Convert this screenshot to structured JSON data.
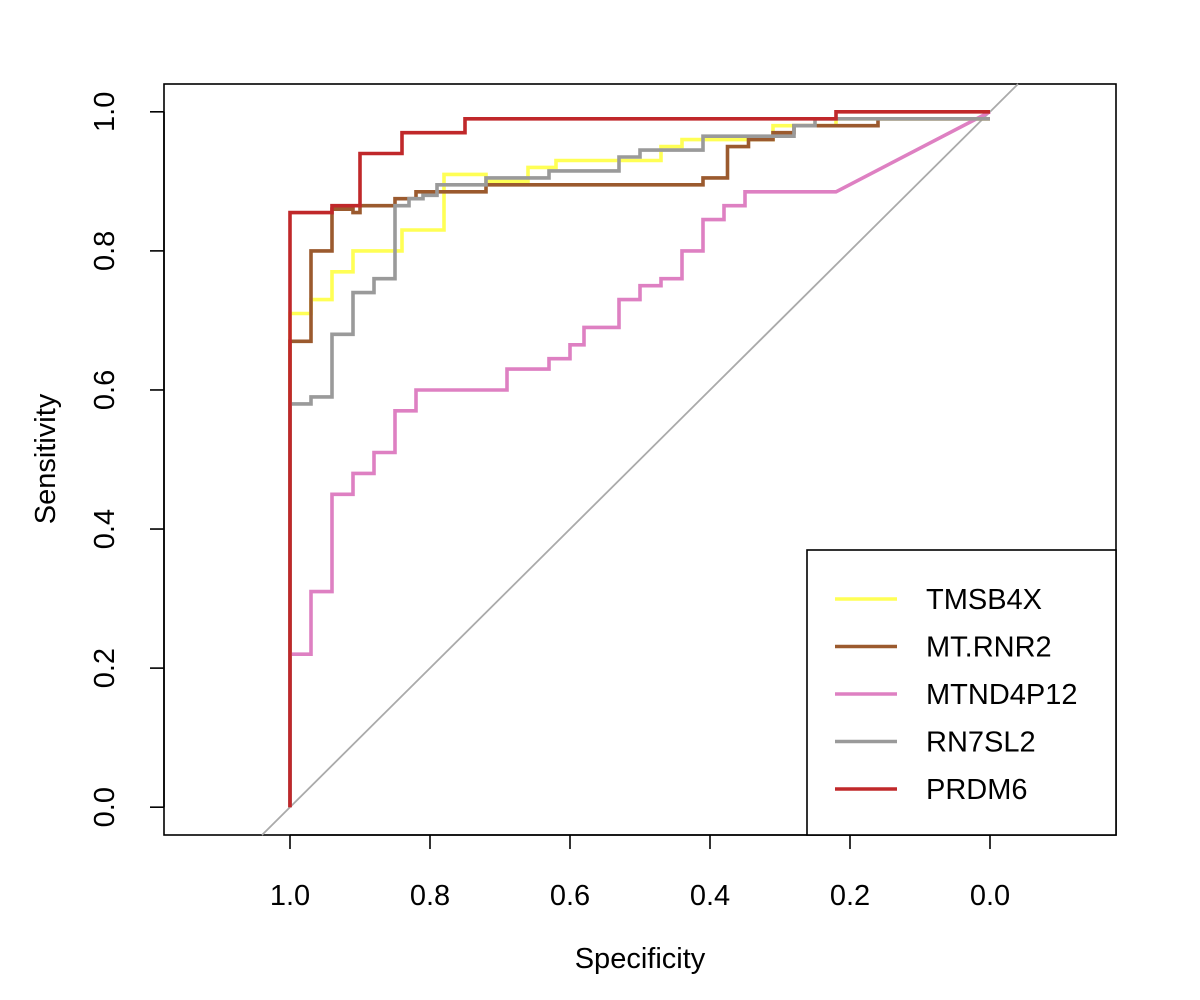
{
  "chart_data": {
    "type": "line",
    "title": "",
    "xlabel": "Specificity",
    "ylabel": "Sensitivity",
    "xlim": [
      1.18,
      -0.18
    ],
    "ylim": [
      -0.04,
      1.04
    ],
    "x_reversed": true,
    "x_ticks": [
      1.0,
      0.8,
      0.6,
      0.4,
      0.2,
      0.0
    ],
    "x_tick_labels": [
      "1.0",
      "0.8",
      "0.6",
      "0.4",
      "0.2",
      "0.0"
    ],
    "y_ticks": [
      0.0,
      0.2,
      0.4,
      0.6,
      0.8,
      1.0
    ],
    "y_tick_labels": [
      "0.0",
      "0.2",
      "0.4",
      "0.6",
      "0.8",
      "1.0"
    ],
    "grid": false,
    "legend_position": "bottom-right",
    "diagonal_reference": {
      "from": [
        1.04,
        -0.04
      ],
      "to": [
        -0.04,
        1.04
      ],
      "color": "#aaaaaa"
    },
    "series": [
      {
        "name": "TMSB4X",
        "color": "#ffff55",
        "points": [
          [
            1.0,
            0.0
          ],
          [
            1.0,
            0.71
          ],
          [
            0.97,
            0.71
          ],
          [
            0.97,
            0.73
          ],
          [
            0.94,
            0.73
          ],
          [
            0.94,
            0.77
          ],
          [
            0.91,
            0.77
          ],
          [
            0.91,
            0.8
          ],
          [
            0.84,
            0.8
          ],
          [
            0.84,
            0.83
          ],
          [
            0.78,
            0.83
          ],
          [
            0.78,
            0.91
          ],
          [
            0.72,
            0.91
          ],
          [
            0.72,
            0.9
          ],
          [
            0.66,
            0.9
          ],
          [
            0.66,
            0.92
          ],
          [
            0.62,
            0.92
          ],
          [
            0.62,
            0.93
          ],
          [
            0.47,
            0.93
          ],
          [
            0.47,
            0.95
          ],
          [
            0.44,
            0.95
          ],
          [
            0.44,
            0.96
          ],
          [
            0.31,
            0.96
          ],
          [
            0.31,
            0.98
          ],
          [
            0.22,
            0.98
          ],
          [
            0.22,
            0.99
          ],
          [
            0.0,
            0.99
          ]
        ]
      },
      {
        "name": "MT.RNR2",
        "color": "#9b5a2e",
        "points": [
          [
            1.0,
            0.0
          ],
          [
            1.0,
            0.67
          ],
          [
            0.97,
            0.67
          ],
          [
            0.97,
            0.8
          ],
          [
            0.94,
            0.8
          ],
          [
            0.94,
            0.86
          ],
          [
            0.91,
            0.86
          ],
          [
            0.91,
            0.855
          ],
          [
            0.9,
            0.855
          ],
          [
            0.9,
            0.865
          ],
          [
            0.85,
            0.865
          ],
          [
            0.85,
            0.875
          ],
          [
            0.82,
            0.875
          ],
          [
            0.82,
            0.885
          ],
          [
            0.72,
            0.885
          ],
          [
            0.72,
            0.895
          ],
          [
            0.41,
            0.895
          ],
          [
            0.41,
            0.905
          ],
          [
            0.375,
            0.905
          ],
          [
            0.375,
            0.95
          ],
          [
            0.345,
            0.95
          ],
          [
            0.345,
            0.96
          ],
          [
            0.31,
            0.96
          ],
          [
            0.31,
            0.97
          ],
          [
            0.28,
            0.97
          ],
          [
            0.28,
            0.98
          ],
          [
            0.16,
            0.98
          ],
          [
            0.16,
            0.99
          ],
          [
            0.0,
            0.99
          ]
        ]
      },
      {
        "name": "MTND4P12",
        "color": "#de80c2",
        "points": [
          [
            1.0,
            0.0
          ],
          [
            1.0,
            0.22
          ],
          [
            0.97,
            0.22
          ],
          [
            0.97,
            0.31
          ],
          [
            0.94,
            0.31
          ],
          [
            0.94,
            0.45
          ],
          [
            0.91,
            0.45
          ],
          [
            0.91,
            0.48
          ],
          [
            0.88,
            0.48
          ],
          [
            0.88,
            0.51
          ],
          [
            0.85,
            0.51
          ],
          [
            0.85,
            0.57
          ],
          [
            0.82,
            0.57
          ],
          [
            0.82,
            0.6
          ],
          [
            0.69,
            0.6
          ],
          [
            0.69,
            0.63
          ],
          [
            0.63,
            0.63
          ],
          [
            0.63,
            0.645
          ],
          [
            0.6,
            0.645
          ],
          [
            0.6,
            0.665
          ],
          [
            0.58,
            0.665
          ],
          [
            0.58,
            0.69
          ],
          [
            0.53,
            0.69
          ],
          [
            0.53,
            0.73
          ],
          [
            0.5,
            0.73
          ],
          [
            0.5,
            0.75
          ],
          [
            0.47,
            0.75
          ],
          [
            0.47,
            0.76
          ],
          [
            0.44,
            0.76
          ],
          [
            0.44,
            0.8
          ],
          [
            0.41,
            0.8
          ],
          [
            0.41,
            0.845
          ],
          [
            0.38,
            0.845
          ],
          [
            0.38,
            0.865
          ],
          [
            0.35,
            0.865
          ],
          [
            0.35,
            0.885
          ],
          [
            0.22,
            0.885
          ],
          [
            0.0,
            1.0
          ]
        ]
      },
      {
        "name": "RN7SL2",
        "color": "#9a9a9a",
        "points": [
          [
            1.0,
            0.0
          ],
          [
            1.0,
            0.58
          ],
          [
            0.97,
            0.58
          ],
          [
            0.97,
            0.59
          ],
          [
            0.94,
            0.59
          ],
          [
            0.94,
            0.68
          ],
          [
            0.91,
            0.68
          ],
          [
            0.91,
            0.74
          ],
          [
            0.88,
            0.74
          ],
          [
            0.88,
            0.76
          ],
          [
            0.85,
            0.76
          ],
          [
            0.85,
            0.865
          ],
          [
            0.83,
            0.865
          ],
          [
            0.83,
            0.875
          ],
          [
            0.81,
            0.875
          ],
          [
            0.81,
            0.88
          ],
          [
            0.79,
            0.88
          ],
          [
            0.79,
            0.895
          ],
          [
            0.72,
            0.895
          ],
          [
            0.72,
            0.905
          ],
          [
            0.63,
            0.905
          ],
          [
            0.63,
            0.915
          ],
          [
            0.53,
            0.915
          ],
          [
            0.53,
            0.935
          ],
          [
            0.5,
            0.935
          ],
          [
            0.5,
            0.945
          ],
          [
            0.41,
            0.945
          ],
          [
            0.41,
            0.965
          ],
          [
            0.28,
            0.965
          ],
          [
            0.28,
            0.98
          ],
          [
            0.25,
            0.98
          ],
          [
            0.25,
            0.99
          ],
          [
            0.0,
            0.99
          ]
        ]
      },
      {
        "name": "PRDM6",
        "color": "#c0282a",
        "points": [
          [
            1.0,
            0.0
          ],
          [
            1.0,
            0.855
          ],
          [
            0.94,
            0.855
          ],
          [
            0.94,
            0.865
          ],
          [
            0.9,
            0.865
          ],
          [
            0.9,
            0.94
          ],
          [
            0.84,
            0.94
          ],
          [
            0.84,
            0.97
          ],
          [
            0.75,
            0.97
          ],
          [
            0.75,
            0.99
          ],
          [
            0.22,
            0.99
          ],
          [
            0.22,
            1.0
          ],
          [
            0.0,
            1.0
          ]
        ]
      }
    ]
  }
}
